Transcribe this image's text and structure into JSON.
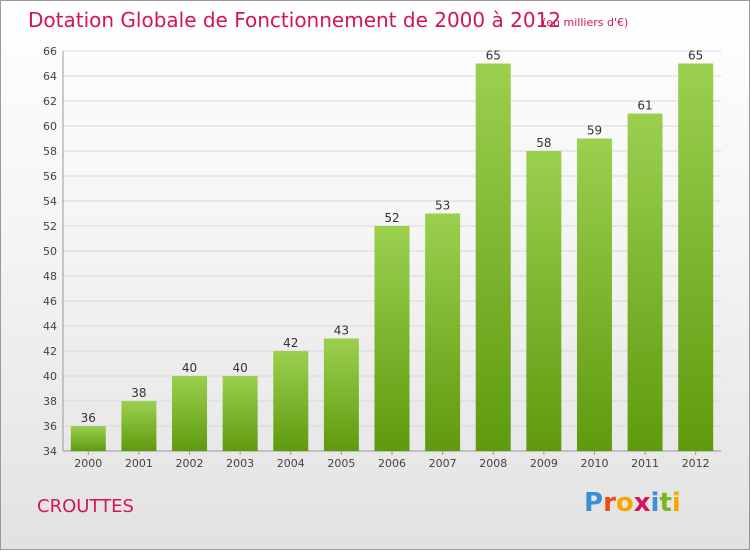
{
  "header": {
    "title": "Dotation Globale de Fonctionnement de 2000 à 2012",
    "unit": "(en milliers d'€)"
  },
  "footer": {
    "commune": "CROUTTES",
    "logo_text": "Proxiti"
  },
  "colors": {
    "title": "#d4145a",
    "bar_top": "#9bd04f",
    "bar_bottom": "#5f9a0e",
    "grid": "#d8d8d8"
  },
  "chart_data": {
    "type": "bar",
    "title": "Dotation Globale de Fonctionnement de 2000 à 2012",
    "subtitle": "(en milliers d'€)",
    "xlabel": "",
    "ylabel": "",
    "categories": [
      "2000",
      "2001",
      "2002",
      "2003",
      "2004",
      "2005",
      "2006",
      "2007",
      "2008",
      "2009",
      "2010",
      "2011",
      "2012"
    ],
    "values": [
      36,
      38,
      40,
      40,
      42,
      43,
      52,
      53,
      65,
      58,
      59,
      61,
      65
    ],
    "ylim": [
      34,
      66
    ],
    "yticks": [
      34,
      36,
      38,
      40,
      42,
      44,
      46,
      48,
      50,
      52,
      54,
      56,
      58,
      60,
      62,
      64,
      66
    ],
    "grid": true,
    "data_labels": true
  }
}
